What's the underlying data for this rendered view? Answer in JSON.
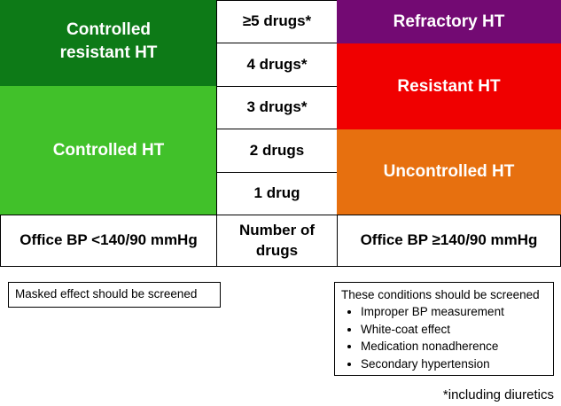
{
  "left_column": {
    "controlled_resistant": {
      "label": "Controlled\nresistant HT",
      "color": "#0d7a17"
    },
    "controlled": {
      "label": "Controlled HT",
      "color": "#41c12a"
    },
    "footer": "Office BP <140/90 mmHg"
  },
  "middle_column": {
    "drug_counts": [
      "≥5 drugs*",
      "4 drugs*",
      "3 drugs*",
      "2 drugs",
      "1 drug"
    ],
    "footer": "Number of\ndrugs"
  },
  "right_column": {
    "refractory": {
      "label": "Refractory HT",
      "color": "#730a73"
    },
    "resistant": {
      "label": "Resistant HT",
      "color": "#f00000"
    },
    "uncontrolled": {
      "label": "Uncontrolled HT",
      "color": "#e7700f"
    },
    "footer": "Office BP ≥140/90 mmHg"
  },
  "notes": {
    "left": "Masked effect should be screened",
    "right": {
      "title": "These conditions should be screened",
      "items": [
        "Improper BP measurement",
        "White-coat effect",
        "Medication nonadherence",
        "Secondary hypertension"
      ]
    }
  },
  "footnote": "*including diuretics"
}
